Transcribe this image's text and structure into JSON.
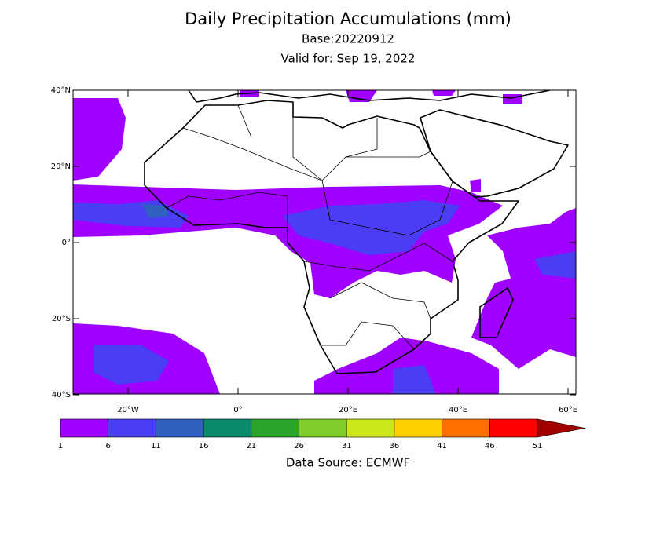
{
  "map": {
    "title": "Daily Precipitation Accumulations (mm)",
    "base": "Base:20220912",
    "valid": "Valid for: Sep 19, 2022",
    "lat_ticks": [
      {
        "value": 40,
        "label": "40°N"
      },
      {
        "value": 20,
        "label": "20°N"
      },
      {
        "value": 0,
        "label": "0°"
      },
      {
        "value": -20,
        "label": "20°S"
      },
      {
        "value": -40,
        "label": "40°S"
      }
    ],
    "lon_ticks": [
      {
        "value": -20,
        "label": "20°W"
      },
      {
        "value": 0,
        "label": "0°"
      },
      {
        "value": 20,
        "label": "20°E"
      },
      {
        "value": 40,
        "label": "40°E"
      },
      {
        "value": 60,
        "label": "60°E"
      }
    ],
    "colorbar": {
      "levels": [
        1,
        6,
        11,
        16,
        21,
        26,
        31,
        36,
        41,
        46,
        51
      ],
      "colors": [
        "#a000ff",
        "#4b3cf5",
        "#2f5fbf",
        "#0a8a6a",
        "#2aa52a",
        "#80cc28",
        "#cce81a",
        "#ffd000",
        "#ff7000",
        "#ff0000",
        "#a00000"
      ]
    },
    "source": "Data Source: ECMWF"
  }
}
